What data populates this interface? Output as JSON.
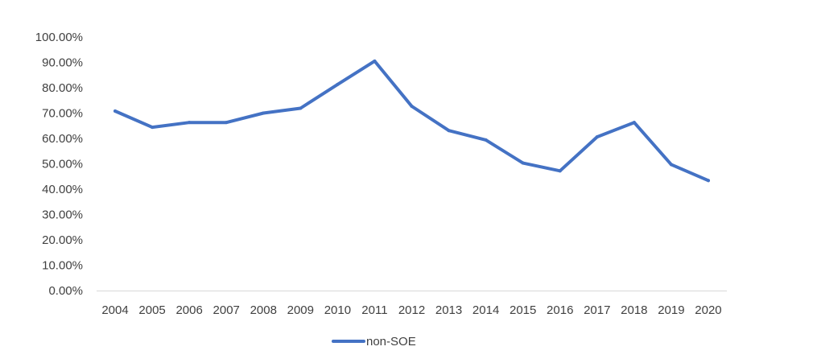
{
  "chart_data": {
    "type": "line",
    "categories": [
      "2004",
      "2005",
      "2006",
      "2007",
      "2008",
      "2009",
      "2010",
      "2011",
      "2012",
      "2013",
      "2014",
      "2015",
      "2016",
      "2017",
      "2018",
      "2019",
      "2020"
    ],
    "series": [
      {
        "name": "non-SOE",
        "color": "#4472C4",
        "values": [
          70.8,
          64.4,
          66.3,
          66.3,
          70.0,
          71.9,
          81.3,
          90.5,
          72.7,
          63.1,
          59.4,
          50.3,
          47.2,
          60.6,
          66.3,
          49.7,
          43.4
        ]
      }
    ],
    "ylim": [
      0,
      100
    ],
    "yticks": [
      "100.00%",
      "90.00%",
      "80.00%",
      "70.00%",
      "60.00%",
      "50.00%",
      "40.00%",
      "30.00%",
      "20.00%",
      "10.00%",
      "0.00%"
    ],
    "grid": false,
    "legend_position": "bottom"
  }
}
